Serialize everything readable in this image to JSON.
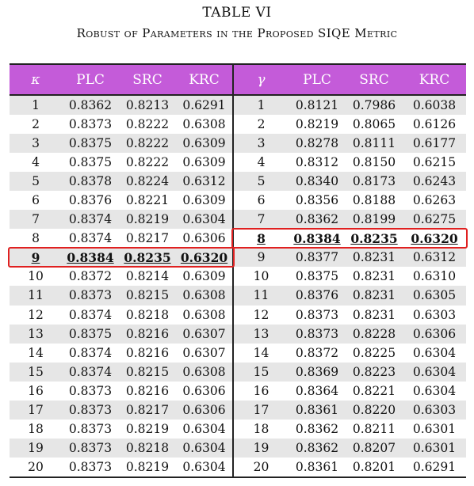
{
  "caption": {
    "label": "TABLE VI",
    "title": "Robust of Parameters in the Proposed SIQE Metric"
  },
  "table": {
    "headers": [
      "κ",
      "PLC",
      "SRC",
      "KRC",
      "γ",
      "PLC",
      "SRC",
      "KRC"
    ],
    "rows": [
      [
        "1",
        "0.8362",
        "0.8213",
        "0.6291",
        "1",
        "0.8121",
        "0.7986",
        "0.6038"
      ],
      [
        "2",
        "0.8373",
        "0.8222",
        "0.6308",
        "2",
        "0.8219",
        "0.8065",
        "0.6126"
      ],
      [
        "3",
        "0.8375",
        "0.8222",
        "0.6309",
        "3",
        "0.8278",
        "0.8111",
        "0.6177"
      ],
      [
        "4",
        "0.8375",
        "0.8222",
        "0.6309",
        "4",
        "0.8312",
        "0.8150",
        "0.6215"
      ],
      [
        "5",
        "0.8378",
        "0.8224",
        "0.6312",
        "5",
        "0.8340",
        "0.8173",
        "0.6243"
      ],
      [
        "6",
        "0.8376",
        "0.8221",
        "0.6309",
        "6",
        "0.8356",
        "0.8188",
        "0.6263"
      ],
      [
        "7",
        "0.8374",
        "0.8219",
        "0.6304",
        "7",
        "0.8362",
        "0.8199",
        "0.6275"
      ],
      [
        "8",
        "0.8374",
        "0.8217",
        "0.6306",
        "8",
        "0.8384",
        "0.8235",
        "0.6320"
      ],
      [
        "9",
        "0.8384",
        "0.8235",
        "0.6320",
        "9",
        "0.8377",
        "0.8231",
        "0.6312"
      ],
      [
        "10",
        "0.8372",
        "0.8214",
        "0.6309",
        "10",
        "0.8375",
        "0.8231",
        "0.6310"
      ],
      [
        "11",
        "0.8373",
        "0.8215",
        "0.6308",
        "11",
        "0.8376",
        "0.8231",
        "0.6305"
      ],
      [
        "12",
        "0.8374",
        "0.8218",
        "0.6308",
        "12",
        "0.8373",
        "0.8231",
        "0.6303"
      ],
      [
        "13",
        "0.8375",
        "0.8216",
        "0.6307",
        "13",
        "0.8373",
        "0.8228",
        "0.6306"
      ],
      [
        "14",
        "0.8374",
        "0.8216",
        "0.6307",
        "14",
        "0.8372",
        "0.8225",
        "0.6304"
      ],
      [
        "15",
        "0.8374",
        "0.8215",
        "0.6308",
        "15",
        "0.8369",
        "0.8223",
        "0.6304"
      ],
      [
        "16",
        "0.8373",
        "0.8216",
        "0.6306",
        "16",
        "0.8364",
        "0.8221",
        "0.6304"
      ],
      [
        "17",
        "0.8373",
        "0.8217",
        "0.6306",
        "17",
        "0.8361",
        "0.8220",
        "0.6303"
      ],
      [
        "18",
        "0.8373",
        "0.8219",
        "0.6304",
        "18",
        "0.8362",
        "0.8211",
        "0.6301"
      ],
      [
        "19",
        "0.8373",
        "0.8218",
        "0.6304",
        "19",
        "0.8362",
        "0.8207",
        "0.6301"
      ],
      [
        "20",
        "0.8373",
        "0.8219",
        "0.6304",
        "20",
        "0.8361",
        "0.8201",
        "0.6291"
      ]
    ],
    "highlight": [
      {
        "row": 8,
        "group": "left"
      },
      {
        "row": 7,
        "group": "right"
      }
    ],
    "colors": {
      "header_bg": "#c45bd9",
      "stripe": "#e6e6e6",
      "highlight_box": "#e02020"
    }
  }
}
